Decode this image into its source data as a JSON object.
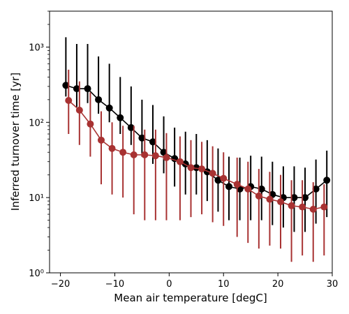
{
  "chart_data": {
    "type": "scatter",
    "xlabel": "Mean air temperature [degC]",
    "ylabel": "Inferred turnover time [yr]",
    "xlim": [
      -22,
      30
    ],
    "ylim": [
      1,
      3000
    ],
    "yscale": "log",
    "x_ticks": [
      -20,
      -10,
      0,
      10,
      20,
      30
    ],
    "x_tick_labels": [
      "−20",
      "−10",
      "0",
      "10",
      "20",
      "30"
    ],
    "y_ticks": [
      1,
      10,
      100,
      1000
    ],
    "y_tick_labels": [
      "10⁰",
      "10¹",
      "10²",
      "10³"
    ],
    "grid": false,
    "series": [
      {
        "color": "#000000",
        "x": [
          -19,
          -17,
          -15,
          -13,
          -11,
          -9,
          -7,
          -5,
          -3,
          -1,
          1,
          3,
          5,
          7,
          9,
          11,
          13,
          15,
          17,
          19,
          21,
          23,
          25,
          27,
          29
        ],
        "y": [
          310,
          280,
          280,
          200,
          155,
          115,
          85,
          62,
          55,
          40,
          33,
          28,
          25,
          22,
          17,
          14,
          13,
          14,
          13,
          11,
          10,
          10,
          10,
          13,
          17
        ],
        "lower": [
          220,
          160,
          180,
          130,
          100,
          70,
          50,
          35,
          28,
          21,
          14,
          11,
          11,
          9,
          6.5,
          5,
          5,
          5,
          5,
          4.3,
          4,
          3.5,
          3.5,
          4.5,
          5.5
        ],
        "upper": [
          1350,
          1100,
          1100,
          750,
          600,
          400,
          300,
          200,
          170,
          120,
          85,
          75,
          70,
          58,
          45,
          35,
          34,
          36,
          35,
          30,
          26,
          26,
          25,
          32,
          42
        ]
      },
      {
        "color": "#a83232",
        "x": [
          -18.5,
          -16.5,
          -14.5,
          -12.5,
          -10.5,
          -8.5,
          -6.5,
          -4.5,
          -2.5,
          -0.5,
          2,
          4,
          6,
          8,
          10,
          12.5,
          14.5,
          16.5,
          18.5,
          20.5,
          22.5,
          24.5,
          26.5,
          28.5
        ],
        "y": [
          195,
          145,
          95,
          58,
          45,
          40,
          37,
          37,
          36,
          34,
          30,
          25,
          24,
          21,
          18,
          15,
          13,
          10.5,
          9.5,
          8.8,
          7.8,
          7.5,
          7.0,
          7.5
        ],
        "lower": [
          70,
          50,
          35,
          15,
          11,
          10,
          6,
          5,
          5,
          5,
          5,
          5.5,
          6,
          4.7,
          4.2,
          3,
          2.5,
          2.1,
          2.3,
          2.1,
          1.4,
          1.7,
          1.4,
          1.7
        ],
        "upper": [
          500,
          350,
          250,
          140,
          100,
          90,
          90,
          80,
          80,
          72,
          65,
          58,
          55,
          48,
          40,
          34,
          30,
          24,
          22,
          20,
          17,
          17,
          16,
          15
        ]
      }
    ]
  }
}
